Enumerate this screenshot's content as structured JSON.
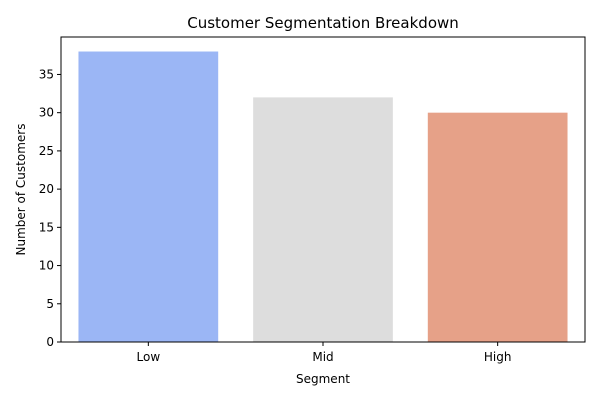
{
  "chart_data": {
    "type": "bar",
    "title": "Customer Segmentation Breakdown",
    "xlabel": "Segment",
    "ylabel": "Number of Customers",
    "categories": [
      "Low",
      "Mid",
      "High"
    ],
    "values": [
      38,
      32,
      30
    ],
    "colors": [
      "#9bb6f5",
      "#dddddd",
      "#e6a188"
    ],
    "ylim": [
      0,
      39.9
    ],
    "yticks": [
      0,
      5,
      10,
      15,
      20,
      25,
      30,
      35
    ],
    "grid": false,
    "legend": "none"
  }
}
